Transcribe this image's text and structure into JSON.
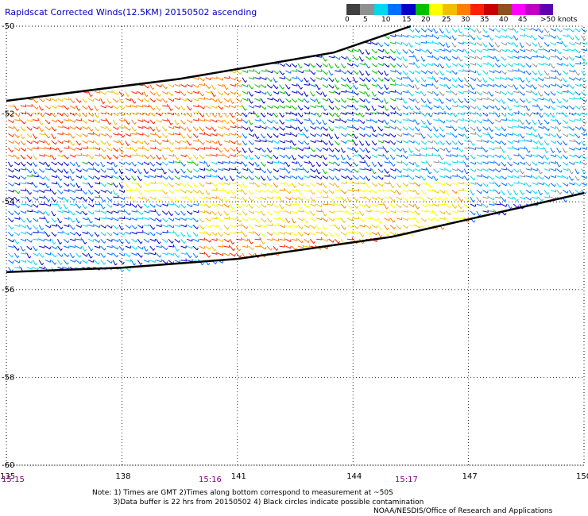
{
  "title": "Rapidscat Corrected Winds(12.5KM) 20150502 ascending",
  "color_scale": {
    "colors": [
      "#404040",
      "#909090",
      "#00d8f0",
      "#0070ff",
      "#0000c8",
      "#00c000",
      "#ffff00",
      "#f0c000",
      "#ff8000",
      "#ff2000",
      "#c80000",
      "#905020",
      "#ff00ff",
      "#c000c0",
      "#6000b0"
    ],
    "labels": [
      "0",
      "5",
      "10",
      "15",
      "20",
      "25",
      "30",
      "35",
      "40",
      "45",
      ">50 knots"
    ]
  },
  "axes": {
    "lat_labels": [
      "-50",
      "-52",
      "-54",
      "-56",
      "-58",
      "-60"
    ],
    "lon_labels": [
      "135",
      "138",
      "141",
      "144",
      "147",
      "150"
    ],
    "time_labels": [
      "15:15",
      "15:16",
      "15:17"
    ]
  },
  "notes": {
    "line1": "Note: 1) Times are GMT 2)Times along bottom correspond to measurement at ~50S",
    "line2": "3)Data buffer is 22 hrs from 20150502 4) Black circles indicate possible contamination",
    "credit": "NOAA/NESDIS/Office of Research and Applications"
  },
  "chart_data": {
    "type": "map",
    "lon_range": [
      135,
      150
    ],
    "lat_range": [
      -60,
      -50
    ],
    "grid": true,
    "swath_edges": {
      "north_edge": [
        [
          135,
          -51.7
        ],
        [
          139.5,
          -51.2
        ],
        [
          143.5,
          -50.6
        ],
        [
          145.5,
          -50.0
        ]
      ],
      "south_edge": [
        [
          135,
          -55.6
        ],
        [
          138,
          -55.5
        ],
        [
          141,
          -55.3
        ],
        [
          143,
          -55.05
        ],
        [
          145,
          -54.8
        ],
        [
          147,
          -54.4
        ],
        [
          150,
          -53.8
        ]
      ]
    },
    "wind_regions": [
      {
        "region": "northwest",
        "lon": [
          135,
          141
        ],
        "lat": [
          -53,
          -50
        ],
        "speed_knots": 30,
        "direction": "westerly"
      },
      {
        "region": "north-central",
        "lon": [
          141,
          145
        ],
        "lat": [
          -52,
          -50
        ],
        "speed_knots": 17,
        "direction": "westerly"
      },
      {
        "region": "east",
        "lon": [
          145,
          150
        ],
        "lat": [
          -54,
          -50
        ],
        "speed_knots": 10,
        "direction": "variable"
      },
      {
        "region": "central band",
        "lon": [
          138,
          147
        ],
        "lat": [
          -54.8,
          -53.5
        ],
        "speed_knots": 25,
        "direction": "westerly"
      },
      {
        "region": "southwest",
        "lon": [
          135,
          140
        ],
        "lat": [
          -55.5,
          -54
        ],
        "speed_knots": 12,
        "direction": "northwesterly"
      },
      {
        "region": "southern strip",
        "lon": [
          140,
          146
        ],
        "lat": [
          -55.3,
          -54.8
        ],
        "speed_knots": 30,
        "direction": "westerly"
      }
    ]
  }
}
